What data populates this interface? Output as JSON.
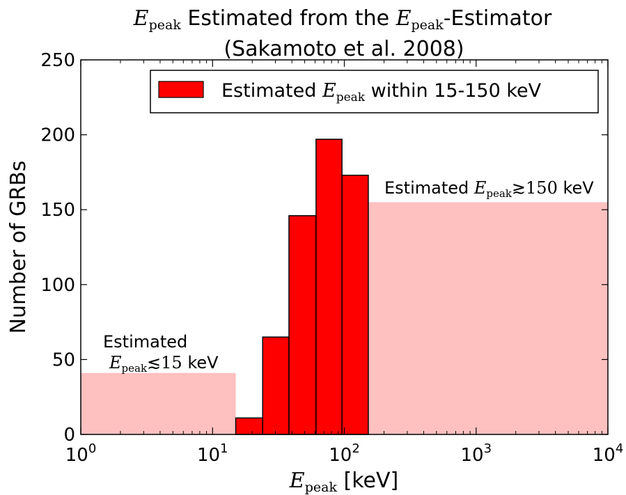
{
  "chart_data": {
    "type": "bar",
    "title": {
      "line1_symbol": "E",
      "line1_symbol_sub": "peak",
      "line1_mid": " Estimated from the ",
      "line1_symbol2": "E",
      "line1_symbol2_sub": "peak",
      "line1_end": "-Estimator",
      "line2": "(Sakamoto et al. 2008)"
    },
    "xlabel": {
      "symbol": "E",
      "sub": "peak",
      "rest": " [keV]"
    },
    "ylabel": "Number of GRBs",
    "x_scale": "log",
    "xlim": [
      1,
      10000
    ],
    "ylim": [
      0,
      250
    ],
    "x_ticks": [
      {
        "value": 1,
        "base": "10",
        "exp": "0"
      },
      {
        "value": 10,
        "base": "10",
        "exp": "1"
      },
      {
        "value": 100,
        "base": "10",
        "exp": "2"
      },
      {
        "value": 1000,
        "base": "10",
        "exp": "3"
      },
      {
        "value": 10000,
        "base": "10",
        "exp": "4"
      }
    ],
    "y_ticks": [
      {
        "value": 0,
        "label": "0"
      },
      {
        "value": 50,
        "label": "50"
      },
      {
        "value": 100,
        "label": "100"
      },
      {
        "value": 150,
        "label": "150"
      },
      {
        "value": 200,
        "label": "200"
      },
      {
        "value": 250,
        "label": "250"
      }
    ],
    "grid": false,
    "legend_position": "top-right",
    "series": [
      {
        "name_pre": "Estimated ",
        "name_symbol": "E",
        "name_sub": "peak",
        "name_post": " within 15-150 keV",
        "color": "#ff0000",
        "edge_color": "#000000",
        "bins": [
          {
            "x0": 15,
            "x1": 24,
            "value": 11
          },
          {
            "x0": 24,
            "x1": 38,
            "value": 65
          },
          {
            "x0": 38,
            "x1": 61,
            "value": 146
          },
          {
            "x0": 61,
            "x1": 96,
            "value": 197
          },
          {
            "x0": 96,
            "x1": 152,
            "value": 173
          }
        ]
      }
    ],
    "shaded_regions": [
      {
        "x0": 1,
        "x1": 15,
        "value": 41,
        "color": "#ffc0c0"
      },
      {
        "x0": 152,
        "x1": 10000,
        "value": 155,
        "color": "#ffc0c0"
      }
    ],
    "annotations": {
      "low": {
        "line1": "Estimated",
        "symbol": "E",
        "sub": "peak",
        "rel": "≲15",
        "unit": " keV"
      },
      "high": {
        "pre": "Estimated ",
        "symbol": "E",
        "sub": "peak",
        "rel": "≳150",
        "unit": " keV"
      }
    }
  }
}
